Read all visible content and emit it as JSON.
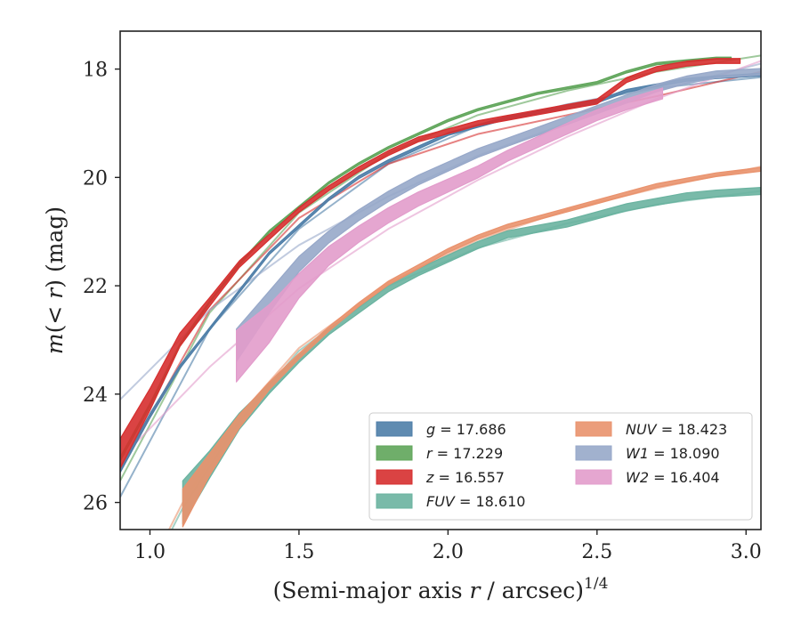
{
  "chart_data": {
    "type": "line",
    "xlabel": "(Semi-major axis r / arcsec)^1/4",
    "xlabel_parts": {
      "prefix": "(Semi-major axis ",
      "var": "r",
      "suffix": " / arcsec)",
      "exponent": "1/4"
    },
    "ylabel": "m(< r) (mag)",
    "ylabel_parts": {
      "m": "m",
      "open": "(",
      "lt": "< ",
      "r": "r",
      "close": ")",
      "unit": " (mag)"
    },
    "xlim": [
      0.9,
      3.05
    ],
    "ylim": [
      26.5,
      17.3
    ],
    "y_inverted": true,
    "x_ticks": [
      1.0,
      1.5,
      2.0,
      2.5,
      3.0
    ],
    "x_tick_labels": [
      "1.0",
      "1.5",
      "2.0",
      "2.5",
      "3.0"
    ],
    "y_ticks": [
      18,
      20,
      22,
      24,
      26
    ],
    "y_tick_labels": [
      "18",
      "20",
      "22",
      "24",
      "26"
    ],
    "grid": false,
    "legend_position": "lower-right",
    "series": [
      {
        "name": "g = 17.686",
        "band": "g",
        "total": "17.686",
        "color": "#4e7ea8",
        "x": [
          0.9,
          1.0,
          1.1,
          1.2,
          1.3,
          1.4,
          1.5,
          1.6,
          1.7,
          1.8,
          1.9,
          2.0,
          2.1,
          2.2,
          2.3,
          2.4,
          2.5,
          2.6,
          2.7,
          2.8,
          2.9,
          3.0,
          3.05
        ],
        "y": [
          25.4,
          24.4,
          23.5,
          22.8,
          22.1,
          21.4,
          20.9,
          20.4,
          20.0,
          19.7,
          19.45,
          19.2,
          19.05,
          18.9,
          18.8,
          18.7,
          18.6,
          18.4,
          18.3,
          18.2,
          18.15,
          18.12,
          18.1
        ],
        "width": [
          0.1,
          0.08,
          0.06,
          0.05,
          0.05,
          0.05,
          0.05,
          0.05,
          0.05,
          0.05,
          0.05,
          0.05,
          0.05,
          0.05,
          0.05,
          0.05,
          0.05,
          0.05,
          0.05,
          0.05,
          0.05,
          0.05,
          0.05
        ],
        "model_x": [
          0.9,
          1.2,
          1.5,
          1.8,
          2.1,
          2.4,
          2.7,
          3.05
        ],
        "model_y": [
          25.9,
          22.8,
          20.95,
          19.75,
          19.05,
          18.65,
          18.35,
          18.15
        ]
      },
      {
        "name": "r = 17.229",
        "band": "r",
        "total": "17.229",
        "color": "#5fa55a",
        "x": [
          0.9,
          1.0,
          1.1,
          1.2,
          1.3,
          1.4,
          1.5,
          1.6,
          1.7,
          1.8,
          1.9,
          2.0,
          2.1,
          2.2,
          2.3,
          2.4,
          2.5,
          2.6,
          2.7,
          2.8,
          2.9,
          2.95
        ],
        "y": [
          25.2,
          24.2,
          23.1,
          22.3,
          21.6,
          21.0,
          20.55,
          20.1,
          19.75,
          19.45,
          19.2,
          18.95,
          18.75,
          18.6,
          18.45,
          18.35,
          18.25,
          18.05,
          17.9,
          17.85,
          17.8,
          17.8
        ],
        "width": [
          0.08,
          0.06,
          0.05,
          0.04,
          0.04,
          0.04,
          0.04,
          0.04,
          0.04,
          0.04,
          0.04,
          0.04,
          0.04,
          0.04,
          0.04,
          0.04,
          0.04,
          0.04,
          0.04,
          0.04,
          0.04,
          0.04
        ],
        "model_x": [
          0.9,
          1.2,
          1.5,
          1.8,
          2.1,
          2.4,
          2.7,
          3.05
        ],
        "model_y": [
          25.6,
          22.5,
          20.65,
          19.55,
          18.85,
          18.4,
          18.05,
          17.75
        ]
      },
      {
        "name": "z = 16.557",
        "band": "z",
        "total": "16.557",
        "color": "#d62f2f",
        "x": [
          0.9,
          1.0,
          1.1,
          1.2,
          1.3,
          1.4,
          1.5,
          1.6,
          1.7,
          1.8,
          1.9,
          2.0,
          2.1,
          2.2,
          2.3,
          2.4,
          2.5,
          2.6,
          2.7,
          2.8,
          2.9,
          2.98
        ],
        "y": [
          25.1,
          24.1,
          23.0,
          22.3,
          21.6,
          21.1,
          20.6,
          20.2,
          19.85,
          19.55,
          19.3,
          19.15,
          19.0,
          18.9,
          18.8,
          18.7,
          18.6,
          18.2,
          18.0,
          17.9,
          17.85,
          17.85
        ],
        "width": [
          0.55,
          0.4,
          0.25,
          0.16,
          0.12,
          0.1,
          0.09,
          0.09,
          0.09,
          0.09,
          0.09,
          0.09,
          0.09,
          0.09,
          0.09,
          0.09,
          0.09,
          0.09,
          0.09,
          0.09,
          0.09,
          0.09
        ],
        "model_x": [
          0.9,
          1.2,
          1.5,
          1.8,
          2.1,
          2.4,
          2.7,
          3.05
        ],
        "model_y": [
          25.4,
          22.45,
          20.75,
          19.75,
          19.2,
          18.85,
          18.5,
          18.05
        ]
      },
      {
        "name": "FUV = 18.610",
        "band": "FUV",
        "total": "18.610",
        "color": "#6ab3a0",
        "x": [
          1.11,
          1.2,
          1.3,
          1.4,
          1.5,
          1.6,
          1.7,
          1.8,
          1.9,
          2.0,
          2.1,
          2.2,
          2.3,
          2.4,
          2.5,
          2.6,
          2.7,
          2.8,
          2.9,
          3.05
        ],
        "y": [
          26.0,
          25.3,
          24.5,
          23.9,
          23.35,
          22.85,
          22.45,
          22.05,
          21.75,
          21.5,
          21.25,
          21.05,
          20.95,
          20.85,
          20.7,
          20.55,
          20.45,
          20.35,
          20.3,
          20.25
        ],
        "width": [
          0.8,
          0.5,
          0.3,
          0.18,
          0.13,
          0.11,
          0.11,
          0.12,
          0.13,
          0.13,
          0.13,
          0.13,
          0.13,
          0.13,
          0.13,
          0.13,
          0.13,
          0.13,
          0.13,
          0.13
        ],
        "model_x": [
          1.0,
          1.11,
          1.3,
          1.5,
          1.8,
          2.1,
          2.4,
          2.7,
          3.05
        ],
        "model_y": [
          27.3,
          26.1,
          24.5,
          23.2,
          22.0,
          21.3,
          20.85,
          20.5,
          20.25
        ]
      },
      {
        "name": "NUV = 18.423",
        "band": "NUV",
        "total": "18.423",
        "color": "#e9926d",
        "x": [
          1.11,
          1.2,
          1.3,
          1.4,
          1.5,
          1.6,
          1.7,
          1.8,
          1.9,
          2.0,
          2.1,
          2.2,
          2.3,
          2.4,
          2.5,
          2.6,
          2.7,
          2.8,
          2.9,
          3.05
        ],
        "y": [
          26.1,
          25.3,
          24.5,
          23.85,
          23.3,
          22.8,
          22.35,
          21.95,
          21.65,
          21.35,
          21.1,
          20.9,
          20.75,
          20.6,
          20.45,
          20.3,
          20.15,
          20.05,
          19.95,
          19.85
        ],
        "width": [
          0.7,
          0.4,
          0.25,
          0.14,
          0.1,
          0.08,
          0.07,
          0.07,
          0.07,
          0.07,
          0.07,
          0.07,
          0.07,
          0.07,
          0.07,
          0.07,
          0.07,
          0.07,
          0.07,
          0.07
        ],
        "model_x": [
          1.0,
          1.11,
          1.3,
          1.5,
          1.8,
          2.1,
          2.4,
          2.7,
          3.05
        ],
        "model_y": [
          27.2,
          26.0,
          24.4,
          23.15,
          21.95,
          21.15,
          20.6,
          20.2,
          19.8
        ]
      },
      {
        "name": "W1 = 18.090",
        "band": "W1",
        "total": "18.090",
        "color": "#97a8c9",
        "x": [
          1.29,
          1.4,
          1.5,
          1.6,
          1.7,
          1.8,
          1.9,
          2.0,
          2.1,
          2.2,
          2.3,
          2.4,
          2.5,
          2.6,
          2.7,
          2.8,
          2.9,
          3.05
        ],
        "y": [
          23.1,
          22.3,
          21.6,
          21.1,
          20.7,
          20.35,
          20.05,
          19.8,
          19.55,
          19.35,
          19.15,
          18.95,
          18.75,
          18.55,
          18.35,
          18.2,
          18.1,
          18.05
        ],
        "width": [
          0.6,
          0.4,
          0.28,
          0.22,
          0.2,
          0.19,
          0.18,
          0.17,
          0.16,
          0.15,
          0.15,
          0.15,
          0.15,
          0.15,
          0.14,
          0.14,
          0.13,
          0.12
        ],
        "model_x": [
          0.9,
          1.2,
          1.5,
          1.8,
          2.1,
          2.4,
          2.7,
          3.05
        ],
        "model_y": [
          24.1,
          22.45,
          21.25,
          20.35,
          19.6,
          19.0,
          18.4,
          17.9
        ]
      },
      {
        "name": "W2 = 16.404",
        "band": "W2",
        "total": "16.404",
        "color": "#e29ccb",
        "x": [
          1.29,
          1.4,
          1.5,
          1.6,
          1.7,
          1.8,
          1.9,
          2.0,
          2.1,
          2.2,
          2.3,
          2.4,
          2.5,
          2.6,
          2.72
        ],
        "y": [
          23.3,
          22.7,
          22.0,
          21.45,
          21.05,
          20.7,
          20.4,
          20.15,
          19.9,
          19.6,
          19.35,
          19.1,
          18.85,
          18.65,
          18.45
        ],
        "width": [
          0.95,
          0.7,
          0.45,
          0.35,
          0.3,
          0.28,
          0.26,
          0.24,
          0.22,
          0.2,
          0.2,
          0.2,
          0.2,
          0.2,
          0.2
        ],
        "model_x": [
          0.9,
          1.2,
          1.5,
          1.8,
          2.1,
          2.4,
          2.7,
          3.05
        ],
        "model_y": [
          25.2,
          23.5,
          22.05,
          20.95,
          20.05,
          19.25,
          18.55,
          17.85
        ]
      }
    ]
  }
}
